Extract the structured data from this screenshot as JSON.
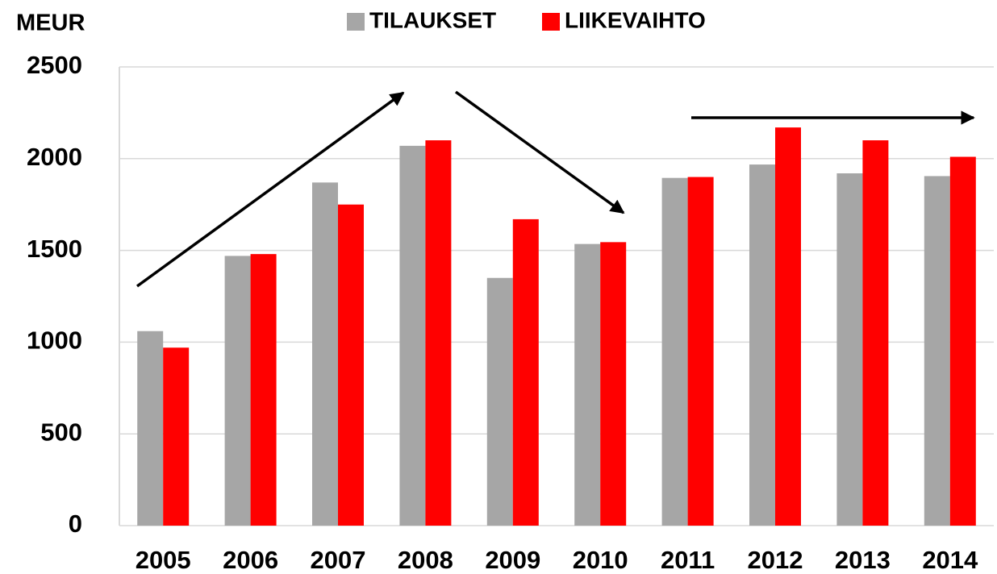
{
  "chart_data": {
    "type": "bar",
    "y_axis_label": "MEUR",
    "categories": [
      "2005",
      "2006",
      "2007",
      "2008",
      "2009",
      "2010",
      "2011",
      "2012",
      "2013",
      "2014"
    ],
    "series": [
      {
        "name": "TILAUKSET",
        "color": "#a6a6a6",
        "values": [
          1060,
          1470,
          1870,
          2070,
          1350,
          1535,
          1895,
          1968,
          1920,
          1905
        ]
      },
      {
        "name": "LIIKEVAIHTO",
        "color": "#ff0000",
        "values": [
          970,
          1480,
          1750,
          2100,
          1670,
          1545,
          1900,
          2170,
          2100,
          2010
        ]
      }
    ],
    "ylim": [
      0,
      2500
    ],
    "yticks": [
      0,
      500,
      1000,
      1500,
      2000,
      2500
    ],
    "grid": true
  }
}
